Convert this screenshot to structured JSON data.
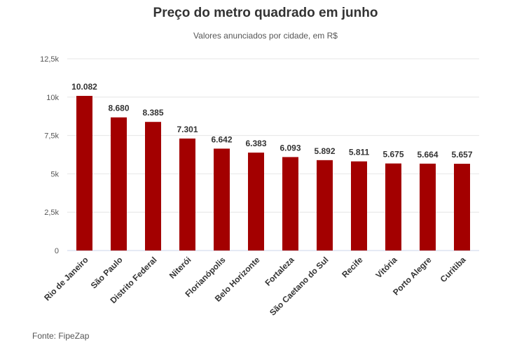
{
  "title": "Preço do metro quadrado em junho",
  "subtitle": "Valores anunciados por cidade, em R$",
  "source": "Fonte: FipeZap",
  "colors": {
    "bar": "#A30000",
    "grid": "#E6E6E6",
    "axis": "#CCD6EB"
  },
  "chart_data": {
    "type": "bar",
    "title": "Preço do metro quadrado em junho",
    "subtitle": "Valores anunciados por cidade, em R$",
    "categories": [
      "Rio de Janeiro",
      "São Paulo",
      "Distrito Federal",
      "Niterói",
      "Florianópolis",
      "Belo Horizonte",
      "Fortaleza",
      "São Caetano do Sul",
      "Recife",
      "Vitória",
      "Porto Alegre",
      "Curitiba"
    ],
    "values": [
      10082,
      8680,
      8385,
      7301,
      6642,
      6383,
      6093,
      5892,
      5811,
      5675,
      5664,
      5657
    ],
    "data_labels": [
      "10.082",
      "8.680",
      "8.385",
      "7.301",
      "6.642",
      "6.383",
      "6.093",
      "5.892",
      "5.811",
      "5.675",
      "5.664",
      "5.657"
    ],
    "y_ticks": [
      0,
      2500,
      5000,
      7500,
      10000,
      12500
    ],
    "y_tick_labels": [
      "0",
      "2,5k",
      "5k",
      "7,5k",
      "10k",
      "12,5k"
    ],
    "ylim": [
      0,
      12500
    ],
    "xlabel": "",
    "ylabel": "",
    "grid": true,
    "legend": "none"
  }
}
